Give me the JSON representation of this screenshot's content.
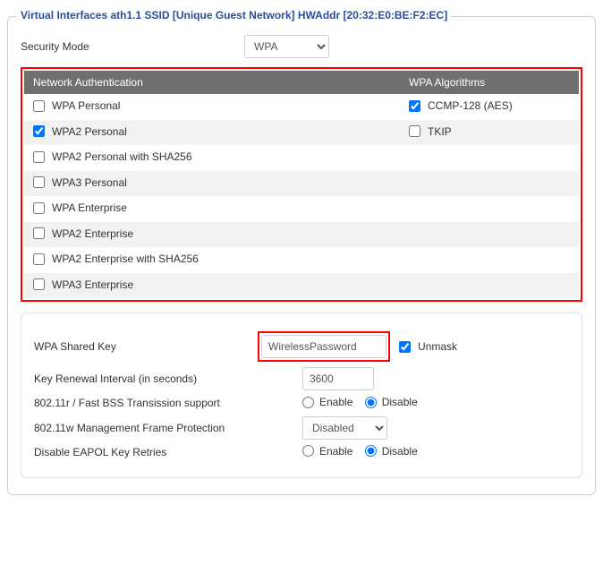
{
  "legend": "Virtual Interfaces ath1.1 SSID [Unique Guest Network] HWAddr [20:32:E0:BE:F2:EC]",
  "security_mode": {
    "label": "Security Mode",
    "selected": "WPA",
    "options": [
      "WPA"
    ]
  },
  "auth_headers": {
    "auth": "Network Authentication",
    "algo": "WPA Algorithms"
  },
  "auth_rows": [
    {
      "auth_label": "WPA Personal",
      "auth_checked": false,
      "algo_label": "CCMP-128 (AES)",
      "algo_checked": true
    },
    {
      "auth_label": "WPA2 Personal",
      "auth_checked": true,
      "algo_label": "TKIP",
      "algo_checked": false
    },
    {
      "auth_label": "WPA2 Personal with SHA256",
      "auth_checked": false,
      "algo_label": "",
      "algo_checked": null
    },
    {
      "auth_label": "WPA3 Personal",
      "auth_checked": false,
      "algo_label": null,
      "algo_checked": null
    },
    {
      "auth_label": "WPA Enterprise",
      "auth_checked": false,
      "algo_label": null,
      "algo_checked": null
    },
    {
      "auth_label": "WPA2 Enterprise",
      "auth_checked": false,
      "algo_label": null,
      "algo_checked": null
    },
    {
      "auth_label": "WPA2 Enterprise with SHA256",
      "auth_checked": false,
      "algo_label": null,
      "algo_checked": null
    },
    {
      "auth_label": "WPA3 Enterprise",
      "auth_checked": false,
      "algo_label": null,
      "algo_checked": null
    }
  ],
  "shared_key": {
    "label": "WPA Shared Key",
    "value": "WirelessPassword",
    "unmask_label": "Unmask",
    "unmask_checked": true
  },
  "key_renewal": {
    "label": "Key Renewal Interval (in seconds)",
    "value": "3600"
  },
  "fast_bss": {
    "label": "802.11r / Fast BSS Transission support",
    "enable": "Enable",
    "disable": "Disable",
    "selected": "disable"
  },
  "mgmt_frame": {
    "label": "802.11w Management Frame Protection",
    "selected": "Disabled",
    "options": [
      "Disabled"
    ]
  },
  "eapol": {
    "label": "Disable EAPOL Key Retries",
    "enable": "Enable",
    "disable": "Disable",
    "selected": "disable"
  },
  "colors": {
    "legend_text": "#2a4d9b",
    "border": "#c8cfd8",
    "header_bg": "#6f6f6f",
    "highlight": "#ff0000",
    "row_alt": "#f2f2f2"
  }
}
